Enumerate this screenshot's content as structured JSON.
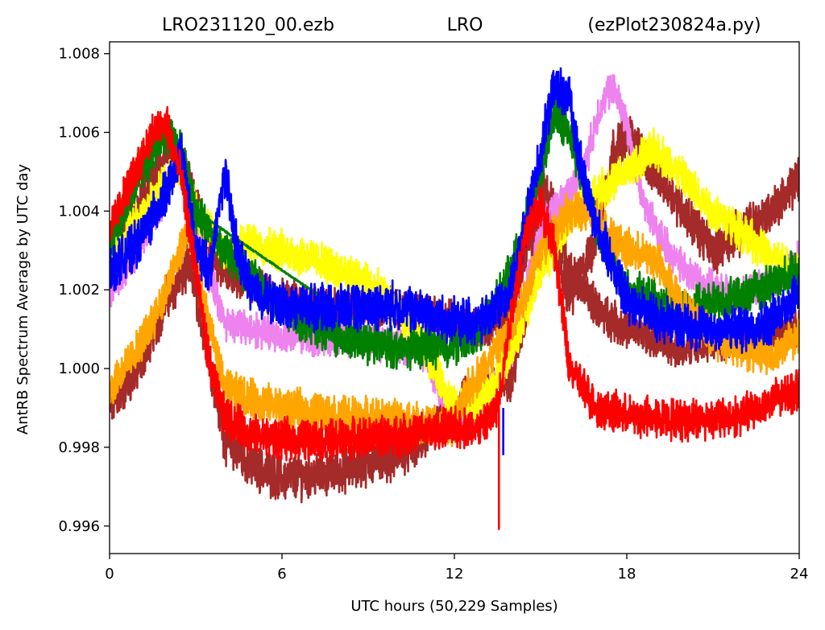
{
  "chart_data": {
    "type": "line",
    "title_parts": [
      "LRO231120_00.ezb",
      "LRO",
      "(ezPlot230824a.py)"
    ],
    "xlabel": "UTC hours  (50,229 Samples)",
    "ylabel": "AntRB Spectrum Average by UTC day",
    "xlim": [
      0,
      24
    ],
    "ylim": [
      0.9953,
      1.0083
    ],
    "x_ticks": [
      0,
      6,
      12,
      18,
      24
    ],
    "x_tick_labels": [
      "0",
      "6",
      "12",
      "18",
      "24"
    ],
    "y_ticks": [
      0.996,
      0.998,
      1.0,
      1.002,
      1.004,
      1.006,
      1.008
    ],
    "y_tick_labels": [
      "0.996",
      "0.998",
      "1.000",
      "1.002",
      "1.004",
      "1.006",
      "1.008"
    ],
    "grid": false,
    "legend": "none",
    "series": [
      {
        "color": "#a52a2a",
        "noise": 0.00045,
        "x_range": [
          0,
          24
        ],
        "x": [
          0,
          1,
          2,
          2.8,
          3.5,
          4,
          5,
          6,
          8,
          10,
          11,
          12,
          13,
          14,
          14.5,
          15,
          15.5,
          16,
          16.5,
          17,
          17.5,
          18,
          18.5,
          19,
          20,
          21,
          22,
          23,
          24
        ],
        "y": [
          0.999,
          1.0,
          1.0018,
          1.0026,
          1.0002,
          0.9982,
          0.9975,
          0.9972,
          0.9974,
          0.9978,
          0.9982,
          0.999,
          0.9995,
          0.9998,
          1.0015,
          1.0045,
          1.003,
          1.0018,
          1.0025,
          1.0035,
          1.0055,
          1.006,
          1.0055,
          1.005,
          1.004,
          1.003,
          1.0035,
          1.004,
          1.0048
        ]
      },
      {
        "color": "#a52a2a",
        "noise": 0.0004,
        "x_range": [
          0,
          24
        ],
        "x": [
          0,
          1,
          2,
          2.8,
          3.5,
          4,
          6,
          8,
          10,
          12,
          13,
          14,
          14.5,
          15,
          15.5,
          16,
          17,
          18,
          20,
          22,
          24
        ],
        "y": [
          1.003,
          1.0042,
          1.0055,
          1.0048,
          1.003,
          1.0024,
          1.0018,
          1.0015,
          1.0015,
          1.0012,
          1.001,
          1.0015,
          1.003,
          1.0048,
          1.004,
          1.0025,
          1.0015,
          1.001,
          1.0005,
          1.0008,
          1.001
        ]
      },
      {
        "color": "#ee82ee",
        "noise": 0.00035,
        "x_range": [
          0,
          24
        ],
        "x": [
          0,
          1,
          2,
          2.5,
          3,
          4,
          6,
          8,
          10,
          11,
          12,
          13,
          14,
          15,
          16,
          16.5,
          17,
          17.5,
          18,
          18.5,
          19,
          20,
          21,
          22,
          23,
          24
        ],
        "y": [
          1.002,
          1.003,
          1.0045,
          1.0055,
          1.0035,
          1.0012,
          1.0008,
          1.0008,
          1.0006,
          1.0004,
          0.9985,
          0.999,
          1.0005,
          1.0035,
          1.0045,
          1.005,
          1.0065,
          1.0072,
          1.0062,
          1.0045,
          1.0035,
          1.0025,
          1.002,
          1.0018,
          1.0022,
          1.0028
        ]
      },
      {
        "color": "#ffff00",
        "noise": 0.0004,
        "x_range": [
          0,
          24
        ],
        "x": [
          0,
          1,
          2,
          2.5,
          3,
          4,
          5,
          6,
          7,
          8,
          9,
          10,
          11,
          12,
          13,
          14,
          15,
          16,
          17,
          18,
          19,
          20,
          21,
          22,
          23,
          24
        ],
        "y": [
          1.0028,
          1.0038,
          1.0048,
          1.0052,
          1.004,
          1.003,
          1.0032,
          1.003,
          1.0028,
          1.0025,
          1.0022,
          1.0015,
          1.0005,
          0.999,
          0.9992,
          1.0005,
          1.0025,
          1.0038,
          1.0045,
          1.005,
          1.0056,
          1.0048,
          1.004,
          1.0035,
          1.0028,
          1.0025
        ]
      },
      {
        "color": "#008000",
        "noise": 0.0004,
        "x_range": [
          0,
          24
        ],
        "x": [
          0,
          1,
          1.5,
          2,
          2.5,
          3,
          4,
          6,
          8,
          10,
          12,
          13,
          14,
          15,
          15.5,
          16,
          17,
          18,
          20,
          22,
          24
        ],
        "y": [
          1.0032,
          1.0048,
          1.0055,
          1.006,
          1.0055,
          1.004,
          1.003,
          1.0015,
          1.0008,
          1.0005,
          1.0006,
          1.001,
          1.0025,
          1.005,
          1.0065,
          1.006,
          1.0035,
          1.002,
          1.0015,
          1.0018,
          1.0025
        ]
      },
      {
        "color": "#008000",
        "noise": 2e-05,
        "x_range": [
          2.6,
          8.6
        ],
        "x": [
          2.6,
          8.6
        ],
        "y": [
          1.0042,
          1.0012
        ]
      },
      {
        "color": "#ffa500",
        "noise": 0.0004,
        "x_range": [
          0,
          24
        ],
        "x": [
          0,
          1,
          2,
          2.7,
          3.5,
          4,
          5,
          6,
          8,
          10,
          12,
          12.5,
          13,
          14,
          15,
          16,
          17,
          18,
          19,
          20,
          21,
          22,
          23,
          24
        ],
        "y": [
          0.9995,
          1.0005,
          1.002,
          1.0035,
          1.001,
          0.9995,
          0.9992,
          0.999,
          0.9988,
          0.9987,
          0.9985,
          0.9995,
          1.0,
          1.001,
          1.003,
          1.004,
          1.0038,
          1.003,
          1.0028,
          1.0015,
          1.0008,
          1.0005,
          1.0003,
          1.0008
        ]
      },
      {
        "color": "#0000ff",
        "noise": 0.00045,
        "x_range": [
          0,
          24
        ],
        "x": [
          0,
          1,
          2,
          2.5,
          3,
          3.5,
          4,
          4.5,
          5,
          6,
          8,
          10,
          12,
          13,
          14,
          15,
          15.5,
          16,
          16.5,
          17,
          18,
          19,
          20,
          21,
          22,
          23,
          24
        ],
        "y": [
          1.0025,
          1.0032,
          1.0045,
          1.0055,
          1.003,
          1.0025,
          1.005,
          1.0028,
          1.002,
          1.0016,
          1.0015,
          1.0016,
          1.0012,
          1.0012,
          1.002,
          1.0055,
          1.0072,
          1.0068,
          1.0048,
          1.0035,
          1.0018,
          1.0013,
          1.0011,
          1.001,
          1.001,
          1.0012,
          1.002
        ]
      },
      {
        "color": "#ff0000",
        "noise": 0.0004,
        "x_range": [
          0,
          24
        ],
        "x": [
          0,
          1,
          1.5,
          2,
          2.5,
          3,
          3.5,
          4,
          5,
          6,
          8,
          10,
          12,
          13,
          13.5,
          14,
          14.5,
          15,
          15.5,
          16,
          17,
          18,
          20,
          22,
          24
        ],
        "y": [
          1.0035,
          1.0052,
          1.006,
          1.0062,
          1.0048,
          1.0025,
          1.0,
          0.9988,
          0.9983,
          0.9982,
          0.9982,
          0.9983,
          0.9985,
          0.9985,
          0.999,
          1.0015,
          1.0035,
          1.0042,
          1.003,
          1.0,
          0.999,
          0.9988,
          0.9987,
          0.9988,
          0.9995
        ]
      }
    ],
    "spikes": [
      {
        "color": "#ff0000",
        "x": 13.55,
        "y_from": 0.999,
        "y_to": 0.9959
      },
      {
        "color": "#0000ff",
        "x": 13.7,
        "y_from": 0.999,
        "y_to": 0.9978
      }
    ]
  }
}
